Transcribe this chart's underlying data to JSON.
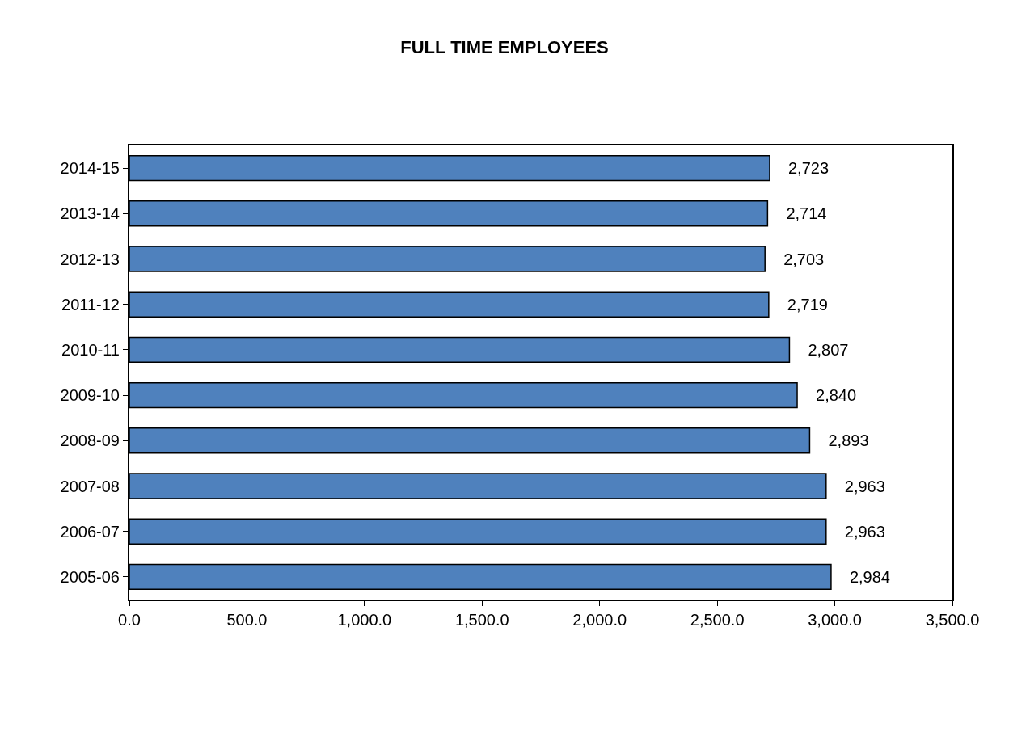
{
  "chart_data": {
    "type": "bar",
    "orientation": "horizontal",
    "title": "FULL TIME EMPLOYEES",
    "categories": [
      "2014-15",
      "2013-14",
      "2012-13",
      "2011-12",
      "2010-11",
      "2009-10",
      "2008-09",
      "2007-08",
      "2006-07",
      "2005-06"
    ],
    "values": [
      2723,
      2714,
      2703,
      2719,
      2807,
      2840,
      2893,
      2963,
      2963,
      2984
    ],
    "value_labels": [
      "2,723",
      "2,714",
      "2,703",
      "2,719",
      "2,807",
      "2,840",
      "2,893",
      "2,963",
      "2,963",
      "2,984"
    ],
    "color": "#4f81bd",
    "xlim": [
      0,
      3500
    ],
    "xticks": [
      {
        "value": 0,
        "label": "0.0"
      },
      {
        "value": 500,
        "label": "500.0"
      },
      {
        "value": 1000,
        "label": "1,000.0"
      },
      {
        "value": 1500,
        "label": "1,500.0"
      },
      {
        "value": 2000,
        "label": "2,000.0"
      },
      {
        "value": 2500,
        "label": "2,500.0"
      },
      {
        "value": 3000,
        "label": "3,000.0"
      },
      {
        "value": 3500,
        "label": "3,500.0"
      }
    ],
    "grid": false,
    "legend": false
  }
}
